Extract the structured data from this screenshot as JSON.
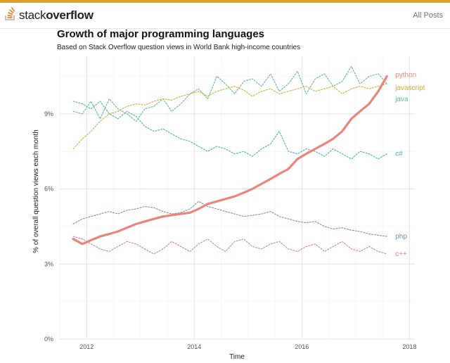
{
  "site": {
    "logo_light": "stack",
    "logo_bold": "overflow",
    "nav_all_posts": "All Posts",
    "accent_color": "#e0a030",
    "logo_icon": "stackoverflow-icon"
  },
  "chart_data": {
    "type": "line",
    "title": "Growth of major programming languages",
    "subtitle": "Based on Stack Overflow question views in World Bank high-income countries",
    "xlabel": "Time",
    "ylabel": "% of overall question views each month",
    "xlim": [
      2011.5,
      2018.1
    ],
    "ylim": [
      0,
      11.3
    ],
    "x_ticks": [
      {
        "value": 2012,
        "label": "2012"
      },
      {
        "value": 2014,
        "label": "2014"
      },
      {
        "value": 2016,
        "label": "2016"
      },
      {
        "value": 2018,
        "label": "2018"
      }
    ],
    "y_ticks": [
      {
        "value": 0,
        "label": "0%"
      },
      {
        "value": 3,
        "label": "3%"
      },
      {
        "value": 6,
        "label": "6%"
      },
      {
        "value": 9,
        "label": "9%"
      }
    ],
    "grid": true,
    "legend": "direct-labels-right",
    "series": [
      {
        "name": "python",
        "color": "#e8847a",
        "style": "solid",
        "width": 3.2,
        "x": [
          2011.75,
          2011.92,
          2012.08,
          2012.25,
          2012.42,
          2012.58,
          2012.75,
          2012.92,
          2013.08,
          2013.25,
          2013.42,
          2013.58,
          2013.75,
          2013.92,
          2014.08,
          2014.25,
          2014.42,
          2014.58,
          2014.75,
          2014.92,
          2015.08,
          2015.25,
          2015.42,
          2015.58,
          2015.75,
          2015.92,
          2016.08,
          2016.25,
          2016.42,
          2016.58,
          2016.75,
          2016.92,
          2017.08,
          2017.25,
          2017.42,
          2017.58
        ],
        "y": [
          4.0,
          3.8,
          3.95,
          4.1,
          4.2,
          4.3,
          4.45,
          4.6,
          4.7,
          4.8,
          4.9,
          4.95,
          5.0,
          5.05,
          5.2,
          5.4,
          5.5,
          5.6,
          5.7,
          5.85,
          6.0,
          6.2,
          6.4,
          6.6,
          6.8,
          7.2,
          7.4,
          7.6,
          7.8,
          8.0,
          8.3,
          8.8,
          9.1,
          9.4,
          9.9,
          10.5
        ]
      },
      {
        "name": "javascript",
        "color": "#c9b03a",
        "style": "dotted",
        "width": 1.1,
        "x": [
          2011.75,
          2011.92,
          2012.08,
          2012.25,
          2012.42,
          2012.58,
          2012.75,
          2012.92,
          2013.08,
          2013.25,
          2013.42,
          2013.58,
          2013.75,
          2013.92,
          2014.08,
          2014.25,
          2014.42,
          2014.58,
          2014.75,
          2014.92,
          2015.08,
          2015.25,
          2015.42,
          2015.58,
          2015.75,
          2015.92,
          2016.08,
          2016.25,
          2016.42,
          2016.58,
          2016.75,
          2016.92,
          2017.08,
          2017.25,
          2017.42,
          2017.58
        ],
        "y": [
          7.6,
          8.0,
          8.3,
          8.7,
          9.0,
          9.1,
          9.3,
          9.4,
          9.35,
          9.5,
          9.6,
          9.55,
          9.7,
          9.8,
          9.9,
          9.7,
          9.9,
          10.0,
          10.1,
          9.95,
          9.7,
          9.9,
          10.0,
          9.8,
          9.9,
          10.0,
          10.1,
          9.9,
          10.0,
          10.1,
          9.8,
          10.0,
          10.1,
          10.0,
          10.1,
          10.2
        ]
      },
      {
        "name": "java",
        "color": "#5fb69a",
        "style": "dotted",
        "width": 1.1,
        "x": [
          2011.75,
          2011.92,
          2012.08,
          2012.25,
          2012.42,
          2012.58,
          2012.75,
          2012.92,
          2013.08,
          2013.25,
          2013.42,
          2013.58,
          2013.75,
          2013.92,
          2014.08,
          2014.25,
          2014.42,
          2014.58,
          2014.75,
          2014.92,
          2015.08,
          2015.25,
          2015.42,
          2015.58,
          2015.75,
          2015.92,
          2016.08,
          2016.25,
          2016.42,
          2016.58,
          2016.75,
          2016.92,
          2017.08,
          2017.25,
          2017.42,
          2017.58
        ],
        "y": [
          9.1,
          9.0,
          9.5,
          8.8,
          9.6,
          9.2,
          9.0,
          8.7,
          9.2,
          9.3,
          9.6,
          9.1,
          9.4,
          9.8,
          10.0,
          9.6,
          10.5,
          10.2,
          9.8,
          10.3,
          10.4,
          10.1,
          10.6,
          9.9,
          10.2,
          10.7,
          9.8,
          10.4,
          10.6,
          10.1,
          10.3,
          10.9,
          10.2,
          10.5,
          10.6,
          10.2
        ]
      },
      {
        "name": "c#",
        "color": "#4ab0b0",
        "style": "dotted",
        "width": 1.1,
        "x": [
          2011.75,
          2011.92,
          2012.08,
          2012.25,
          2012.42,
          2012.58,
          2012.75,
          2012.92,
          2013.08,
          2013.25,
          2013.42,
          2013.58,
          2013.75,
          2013.92,
          2014.08,
          2014.25,
          2014.42,
          2014.58,
          2014.75,
          2014.92,
          2015.08,
          2015.25,
          2015.42,
          2015.58,
          2015.75,
          2015.92,
          2016.08,
          2016.25,
          2016.42,
          2016.58,
          2016.75,
          2016.92,
          2017.08,
          2017.25,
          2017.42,
          2017.58
        ],
        "y": [
          9.5,
          9.4,
          9.2,
          9.5,
          9.0,
          8.8,
          9.1,
          8.9,
          8.5,
          8.3,
          8.4,
          8.2,
          8.0,
          7.9,
          7.7,
          7.5,
          7.7,
          7.6,
          7.4,
          7.5,
          7.3,
          7.6,
          7.8,
          8.3,
          7.5,
          7.4,
          7.6,
          7.5,
          7.3,
          7.6,
          7.4,
          7.2,
          7.5,
          7.4,
          7.2,
          7.4
        ]
      },
      {
        "name": "php",
        "color": "#7890b8",
        "style": "dotted",
        "width": 1.1,
        "x": [
          2011.75,
          2011.92,
          2012.08,
          2012.25,
          2012.42,
          2012.58,
          2012.75,
          2012.92,
          2013.08,
          2013.25,
          2013.42,
          2013.58,
          2013.75,
          2013.92,
          2014.08,
          2014.25,
          2014.42,
          2014.58,
          2014.75,
          2014.92,
          2015.08,
          2015.25,
          2015.42,
          2015.58,
          2015.75,
          2015.92,
          2016.08,
          2016.25,
          2016.42,
          2016.58,
          2016.75,
          2016.92,
          2017.08,
          2017.25,
          2017.42,
          2017.58
        ],
        "y": [
          4.6,
          4.8,
          4.9,
          5.0,
          5.1,
          5.0,
          5.15,
          5.2,
          5.3,
          5.25,
          5.1,
          5.0,
          5.05,
          5.2,
          5.5,
          5.3,
          5.2,
          5.1,
          5.0,
          4.9,
          4.95,
          5.0,
          5.1,
          4.9,
          4.8,
          4.7,
          4.65,
          4.7,
          4.5,
          4.4,
          4.45,
          4.35,
          4.3,
          4.2,
          4.15,
          4.1
        ]
      },
      {
        "name": "c++",
        "color": "#d77ca0",
        "style": "dotted",
        "width": 1.1,
        "x": [
          2011.75,
          2011.92,
          2012.08,
          2012.25,
          2012.42,
          2012.58,
          2012.75,
          2012.92,
          2013.08,
          2013.25,
          2013.42,
          2013.58,
          2013.75,
          2013.92,
          2014.08,
          2014.25,
          2014.42,
          2014.58,
          2014.75,
          2014.92,
          2015.08,
          2015.25,
          2015.42,
          2015.58,
          2015.75,
          2015.92,
          2016.08,
          2016.25,
          2016.42,
          2016.58,
          2016.75,
          2016.92,
          2017.08,
          2017.25,
          2017.42,
          2017.58
        ],
        "y": [
          4.1,
          4.0,
          3.8,
          3.6,
          3.5,
          3.7,
          3.9,
          3.8,
          3.6,
          3.4,
          3.6,
          3.9,
          3.7,
          3.5,
          3.8,
          4.0,
          3.7,
          3.5,
          3.9,
          4.0,
          3.7,
          3.6,
          3.8,
          3.9,
          3.6,
          3.5,
          3.7,
          3.8,
          3.5,
          3.7,
          3.9,
          3.6,
          3.5,
          3.7,
          3.5,
          3.4
        ]
      }
    ]
  }
}
